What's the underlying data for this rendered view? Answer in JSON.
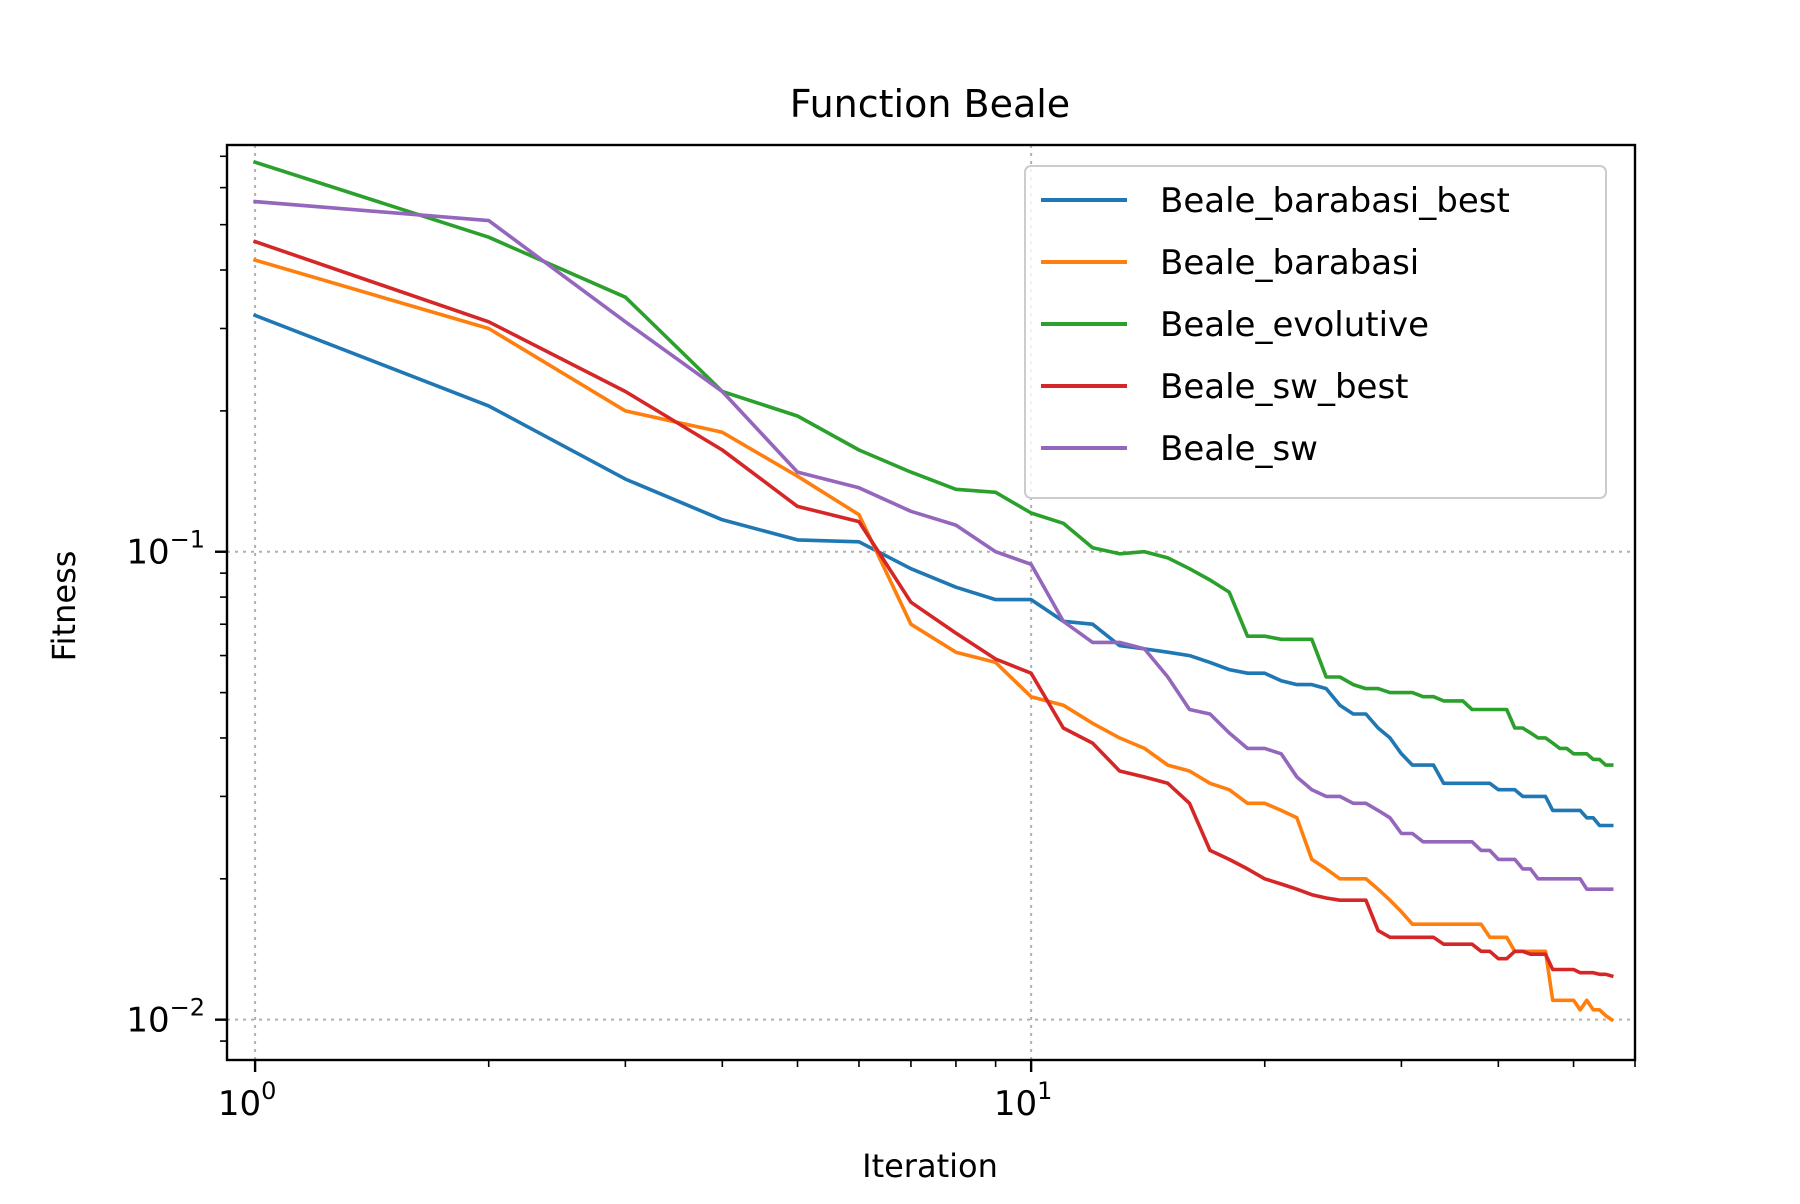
{
  "chart_data": {
    "type": "line",
    "title": "Function Beale",
    "xlabel": "Iteration",
    "ylabel": "Fitness",
    "xscale": "log",
    "yscale": "log",
    "xlim": [
      0.92,
      60
    ],
    "ylim": [
      0.0082,
      0.74
    ],
    "xticks": [
      {
        "value": 1,
        "base": "10",
        "exp": "0"
      },
      {
        "value": 10,
        "base": "10",
        "exp": "1"
      }
    ],
    "yticks": [
      {
        "value": 0.01,
        "base": "10",
        "exp": "−2"
      },
      {
        "value": 0.1,
        "base": "10",
        "exp": "−1"
      }
    ],
    "grid": true,
    "legend_position": "upper right",
    "series": [
      {
        "name": "Beale_barabasi_best",
        "color": "#1f77b4",
        "points": [
          [
            1,
            0.32
          ],
          [
            2,
            0.205
          ],
          [
            3,
            0.143
          ],
          [
            4,
            0.117
          ],
          [
            5,
            0.106
          ],
          [
            6,
            0.105
          ],
          [
            7,
            0.092
          ],
          [
            8,
            0.084
          ],
          [
            9,
            0.079
          ],
          [
            10,
            0.079
          ],
          [
            11,
            0.071
          ],
          [
            12,
            0.07
          ],
          [
            13,
            0.063
          ],
          [
            14,
            0.062
          ],
          [
            15,
            0.061
          ],
          [
            16,
            0.06
          ],
          [
            17,
            0.058
          ],
          [
            18,
            0.056
          ],
          [
            19,
            0.055
          ],
          [
            20,
            0.055
          ],
          [
            21,
            0.053
          ],
          [
            22,
            0.052
          ],
          [
            23,
            0.052
          ],
          [
            24,
            0.051
          ],
          [
            25,
            0.047
          ],
          [
            26,
            0.045
          ],
          [
            27,
            0.045
          ],
          [
            28,
            0.042
          ],
          [
            29,
            0.04
          ],
          [
            30,
            0.037
          ],
          [
            31,
            0.035
          ],
          [
            32,
            0.035
          ],
          [
            33,
            0.035
          ],
          [
            34,
            0.032
          ],
          [
            35,
            0.032
          ],
          [
            36,
            0.032
          ],
          [
            37,
            0.032
          ],
          [
            38,
            0.032
          ],
          [
            39,
            0.032
          ],
          [
            40,
            0.031
          ],
          [
            41,
            0.031
          ],
          [
            42,
            0.031
          ],
          [
            43,
            0.03
          ],
          [
            44,
            0.03
          ],
          [
            45,
            0.03
          ],
          [
            46,
            0.03
          ],
          [
            47,
            0.028
          ],
          [
            48,
            0.028
          ],
          [
            49,
            0.028
          ],
          [
            50,
            0.028
          ],
          [
            51,
            0.028
          ],
          [
            52,
            0.027
          ],
          [
            53,
            0.027
          ],
          [
            54,
            0.026
          ],
          [
            55,
            0.026
          ],
          [
            56,
            0.026
          ]
        ]
      },
      {
        "name": "Beale_barabasi",
        "color": "#ff7f0e",
        "points": [
          [
            1,
            0.42
          ],
          [
            2,
            0.3
          ],
          [
            3,
            0.2
          ],
          [
            4,
            0.18
          ],
          [
            5,
            0.145
          ],
          [
            6,
            0.12
          ],
          [
            7,
            0.07
          ],
          [
            8,
            0.061
          ],
          [
            9,
            0.058
          ],
          [
            10,
            0.049
          ],
          [
            11,
            0.047
          ],
          [
            12,
            0.043
          ],
          [
            13,
            0.04
          ],
          [
            14,
            0.038
          ],
          [
            15,
            0.035
          ],
          [
            16,
            0.034
          ],
          [
            17,
            0.032
          ],
          [
            18,
            0.031
          ],
          [
            19,
            0.029
          ],
          [
            20,
            0.029
          ],
          [
            21,
            0.028
          ],
          [
            22,
            0.027
          ],
          [
            23,
            0.022
          ],
          [
            24,
            0.021
          ],
          [
            25,
            0.02
          ],
          [
            26,
            0.02
          ],
          [
            27,
            0.02
          ],
          [
            28,
            0.019
          ],
          [
            29,
            0.018
          ],
          [
            30,
            0.017
          ],
          [
            31,
            0.016
          ],
          [
            32,
            0.016
          ],
          [
            33,
            0.016
          ],
          [
            34,
            0.016
          ],
          [
            35,
            0.016
          ],
          [
            36,
            0.016
          ],
          [
            37,
            0.016
          ],
          [
            38,
            0.016
          ],
          [
            39,
            0.015
          ],
          [
            40,
            0.015
          ],
          [
            41,
            0.015
          ],
          [
            42,
            0.014
          ],
          [
            43,
            0.014
          ],
          [
            44,
            0.014
          ],
          [
            45,
            0.014
          ],
          [
            46,
            0.014
          ],
          [
            47,
            0.011
          ],
          [
            48,
            0.011
          ],
          [
            49,
            0.011
          ],
          [
            50,
            0.011
          ],
          [
            51,
            0.0105
          ],
          [
            52,
            0.011
          ],
          [
            53,
            0.0105
          ],
          [
            54,
            0.0105
          ],
          [
            55,
            0.0102
          ],
          [
            56,
            0.01
          ]
        ]
      },
      {
        "name": "Beale_evolutive",
        "color": "#2ca02c",
        "points": [
          [
            1,
            0.68
          ],
          [
            2,
            0.47
          ],
          [
            3,
            0.35
          ],
          [
            4,
            0.22
          ],
          [
            5,
            0.195
          ],
          [
            6,
            0.165
          ],
          [
            7,
            0.148
          ],
          [
            8,
            0.136
          ],
          [
            9,
            0.134
          ],
          [
            10,
            0.121
          ],
          [
            11,
            0.115
          ],
          [
            12,
            0.102
          ],
          [
            13,
            0.099
          ],
          [
            14,
            0.1
          ],
          [
            15,
            0.097
          ],
          [
            16,
            0.092
          ],
          [
            17,
            0.087
          ],
          [
            18,
            0.082
          ],
          [
            19,
            0.066
          ],
          [
            20,
            0.066
          ],
          [
            21,
            0.065
          ],
          [
            22,
            0.065
          ],
          [
            23,
            0.065
          ],
          [
            24,
            0.054
          ],
          [
            25,
            0.054
          ],
          [
            26,
            0.052
          ],
          [
            27,
            0.051
          ],
          [
            28,
            0.051
          ],
          [
            29,
            0.05
          ],
          [
            30,
            0.05
          ],
          [
            31,
            0.05
          ],
          [
            32,
            0.049
          ],
          [
            33,
            0.049
          ],
          [
            34,
            0.048
          ],
          [
            35,
            0.048
          ],
          [
            36,
            0.048
          ],
          [
            37,
            0.046
          ],
          [
            38,
            0.046
          ],
          [
            39,
            0.046
          ],
          [
            40,
            0.046
          ],
          [
            41,
            0.046
          ],
          [
            42,
            0.042
          ],
          [
            43,
            0.042
          ],
          [
            44,
            0.041
          ],
          [
            45,
            0.04
          ],
          [
            46,
            0.04
          ],
          [
            47,
            0.039
          ],
          [
            48,
            0.038
          ],
          [
            49,
            0.038
          ],
          [
            50,
            0.037
          ],
          [
            51,
            0.037
          ],
          [
            52,
            0.037
          ],
          [
            53,
            0.036
          ],
          [
            54,
            0.036
          ],
          [
            55,
            0.035
          ],
          [
            56,
            0.035
          ]
        ]
      },
      {
        "name": "Beale_sw_best",
        "color": "#d62728",
        "points": [
          [
            1,
            0.46
          ],
          [
            2,
            0.31
          ],
          [
            3,
            0.22
          ],
          [
            4,
            0.165
          ],
          [
            5,
            0.125
          ],
          [
            6,
            0.116
          ],
          [
            7,
            0.078
          ],
          [
            8,
            0.067
          ],
          [
            9,
            0.059
          ],
          [
            10,
            0.055
          ],
          [
            11,
            0.042
          ],
          [
            12,
            0.039
          ],
          [
            13,
            0.034
          ],
          [
            14,
            0.033
          ],
          [
            15,
            0.032
          ],
          [
            16,
            0.029
          ],
          [
            17,
            0.023
          ],
          [
            18,
            0.022
          ],
          [
            19,
            0.021
          ],
          [
            20,
            0.02
          ],
          [
            21,
            0.0195
          ],
          [
            22,
            0.019
          ],
          [
            23,
            0.0185
          ],
          [
            24,
            0.0182
          ],
          [
            25,
            0.018
          ],
          [
            26,
            0.018
          ],
          [
            27,
            0.018
          ],
          [
            28,
            0.0155
          ],
          [
            29,
            0.015
          ],
          [
            30,
            0.015
          ],
          [
            31,
            0.015
          ],
          [
            32,
            0.015
          ],
          [
            33,
            0.015
          ],
          [
            34,
            0.0145
          ],
          [
            35,
            0.0145
          ],
          [
            36,
            0.0145
          ],
          [
            37,
            0.0145
          ],
          [
            38,
            0.014
          ],
          [
            39,
            0.014
          ],
          [
            40,
            0.0135
          ],
          [
            41,
            0.0135
          ],
          [
            42,
            0.014
          ],
          [
            43,
            0.014
          ],
          [
            44,
            0.0138
          ],
          [
            45,
            0.0138
          ],
          [
            46,
            0.0138
          ],
          [
            47,
            0.0128
          ],
          [
            48,
            0.0128
          ],
          [
            49,
            0.0128
          ],
          [
            50,
            0.0128
          ],
          [
            51,
            0.0126
          ],
          [
            52,
            0.0126
          ],
          [
            53,
            0.0126
          ],
          [
            54,
            0.0125
          ],
          [
            55,
            0.0125
          ],
          [
            56,
            0.0124
          ]
        ]
      },
      {
        "name": "Beale_sw",
        "color": "#9467bd",
        "points": [
          [
            1,
            0.56
          ],
          [
            2,
            0.51
          ],
          [
            3,
            0.31
          ],
          [
            4,
            0.22
          ],
          [
            5,
            0.148
          ],
          [
            6,
            0.137
          ],
          [
            7,
            0.122
          ],
          [
            8,
            0.114
          ],
          [
            9,
            0.1
          ],
          [
            10,
            0.094
          ],
          [
            11,
            0.071
          ],
          [
            12,
            0.064
          ],
          [
            13,
            0.064
          ],
          [
            14,
            0.062
          ],
          [
            15,
            0.054
          ],
          [
            16,
            0.046
          ],
          [
            17,
            0.045
          ],
          [
            18,
            0.041
          ],
          [
            19,
            0.038
          ],
          [
            20,
            0.038
          ],
          [
            21,
            0.037
          ],
          [
            22,
            0.033
          ],
          [
            23,
            0.031
          ],
          [
            24,
            0.03
          ],
          [
            25,
            0.03
          ],
          [
            26,
            0.029
          ],
          [
            27,
            0.029
          ],
          [
            28,
            0.028
          ],
          [
            29,
            0.027
          ],
          [
            30,
            0.025
          ],
          [
            31,
            0.025
          ],
          [
            32,
            0.024
          ],
          [
            33,
            0.024
          ],
          [
            34,
            0.024
          ],
          [
            35,
            0.024
          ],
          [
            36,
            0.024
          ],
          [
            37,
            0.024
          ],
          [
            38,
            0.023
          ],
          [
            39,
            0.023
          ],
          [
            40,
            0.022
          ],
          [
            41,
            0.022
          ],
          [
            42,
            0.022
          ],
          [
            43,
            0.021
          ],
          [
            44,
            0.021
          ],
          [
            45,
            0.02
          ],
          [
            46,
            0.02
          ],
          [
            47,
            0.02
          ],
          [
            48,
            0.02
          ],
          [
            49,
            0.02
          ],
          [
            50,
            0.02
          ],
          [
            51,
            0.02
          ],
          [
            52,
            0.019
          ],
          [
            53,
            0.019
          ],
          [
            54,
            0.019
          ],
          [
            55,
            0.019
          ],
          [
            56,
            0.019
          ]
        ]
      }
    ]
  }
}
